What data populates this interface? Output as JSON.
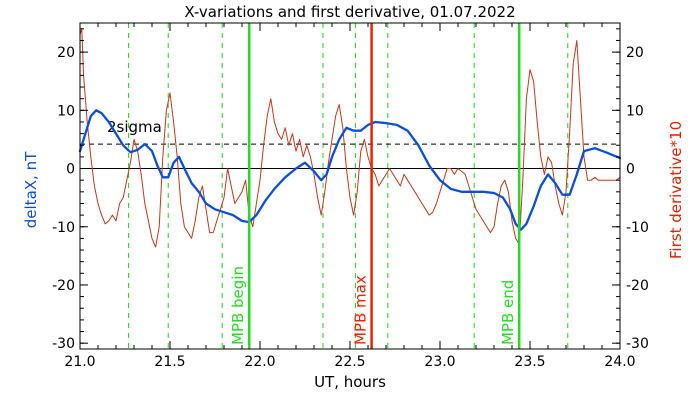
{
  "chart_data": {
    "type": "line",
    "title": "X-variations and first derivative, 01.07.2022",
    "xlabel": "UT, hours",
    "ylabel_left": "deltaX, nT",
    "ylabel_right": "First derivative*10",
    "xlim": [
      21.0,
      24.0
    ],
    "ylim": [
      -31,
      25
    ],
    "x_ticks": [
      21.0,
      21.5,
      22.0,
      22.5,
      23.0,
      23.5,
      24.0
    ],
    "x_tick_labels": [
      "21.0",
      "21.5",
      "22.0",
      "22.5",
      "23.0",
      "23.5",
      "24.0"
    ],
    "y_ticks": [
      20,
      10,
      0,
      -10,
      -20,
      -30
    ],
    "y_tick_labels": [
      "20",
      "10",
      "0",
      "-10",
      "-20",
      "-30"
    ],
    "sigma_level": 4.2,
    "sigma_label": "2sigma",
    "zero_line": 0,
    "colors": {
      "deltaX": "#0a4fd6",
      "derivative": "#c0381c",
      "mpb_begin_end": "#22dd22",
      "mpb_max": "#ee2200",
      "dashed_green": "#22cc22",
      "ylabel_left": "#0a4fd6",
      "ylabel_right": "#dd2200"
    },
    "markers": [
      {
        "x": 21.94,
        "label": "MPB begin",
        "kind": "begin"
      },
      {
        "x": 22.62,
        "label": "MPB max",
        "kind": "max"
      },
      {
        "x": 23.44,
        "label": "MPB end",
        "kind": "end"
      }
    ],
    "dashed_lines_x": [
      21.27,
      21.49,
      21.79,
      22.35,
      22.53,
      22.71,
      23.19,
      23.71
    ],
    "series": [
      {
        "key": "deltaX",
        "x": [
          21.0,
          21.03,
          21.06,
          21.09,
          21.12,
          21.16,
          21.2,
          21.24,
          21.28,
          21.32,
          21.36,
          21.4,
          21.43,
          21.46,
          21.49,
          21.52,
          21.55,
          21.58,
          21.62,
          21.66,
          21.7,
          21.75,
          21.8,
          21.85,
          21.9,
          21.94,
          21.98,
          22.03,
          22.08,
          22.14,
          22.2,
          22.25,
          22.3,
          22.34,
          22.37,
          22.4,
          22.44,
          22.48,
          22.52,
          22.56,
          22.6,
          22.64,
          22.7,
          22.76,
          22.82,
          22.88,
          22.94,
          23.0,
          23.06,
          23.12,
          23.18,
          23.24,
          23.3,
          23.35,
          23.39,
          23.42,
          23.45,
          23.48,
          23.52,
          23.56,
          23.6,
          23.64,
          23.68,
          23.72,
          23.76,
          23.8,
          23.86,
          23.92,
          24.0
        ],
        "values": [
          3.0,
          6.0,
          9.0,
          10.0,
          9.5,
          8.0,
          6.0,
          4.0,
          2.8,
          3.2,
          4.2,
          3.0,
          0.5,
          -1.5,
          -1.5,
          1.0,
          2.0,
          0.0,
          -2.5,
          -4.0,
          -6.0,
          -7.0,
          -7.5,
          -8.0,
          -9.0,
          -9.2,
          -8.0,
          -5.5,
          -3.5,
          -1.5,
          0.0,
          1.0,
          -0.5,
          -2.0,
          -1.0,
          2.0,
          5.0,
          7.0,
          6.5,
          6.5,
          7.5,
          8.0,
          7.8,
          7.5,
          6.5,
          4.0,
          0.5,
          -2.0,
          -3.5,
          -4.0,
          -4.0,
          -4.0,
          -4.2,
          -5.0,
          -7.0,
          -9.5,
          -10.5,
          -9.5,
          -6.5,
          -3.0,
          -1.0,
          -2.5,
          -4.5,
          -4.5,
          -1.0,
          3.0,
          3.5,
          2.8,
          1.8
        ]
      },
      {
        "key": "derivative",
        "x": [
          21.0,
          21.01,
          21.02,
          21.04,
          21.06,
          21.08,
          21.1,
          21.12,
          21.14,
          21.16,
          21.18,
          21.2,
          21.22,
          21.24,
          21.26,
          21.28,
          21.3,
          21.32,
          21.34,
          21.36,
          21.38,
          21.4,
          21.42,
          21.44,
          21.46,
          21.48,
          21.5,
          21.52,
          21.54,
          21.56,
          21.58,
          21.6,
          21.62,
          21.64,
          21.66,
          21.68,
          21.7,
          21.72,
          21.74,
          21.76,
          21.78,
          21.8,
          21.82,
          21.84,
          21.86,
          21.88,
          21.9,
          21.92,
          21.94,
          21.96,
          21.98,
          22.0,
          22.02,
          22.04,
          22.06,
          22.08,
          22.1,
          22.12,
          22.14,
          22.16,
          22.18,
          22.2,
          22.22,
          22.24,
          22.26,
          22.28,
          22.3,
          22.32,
          22.34,
          22.36,
          22.38,
          22.4,
          22.42,
          22.44,
          22.46,
          22.48,
          22.5,
          22.52,
          22.54,
          22.56,
          22.58,
          22.6,
          22.62,
          22.64,
          22.66,
          22.68,
          22.7,
          22.72,
          22.74,
          22.76,
          22.78,
          22.8,
          22.82,
          22.84,
          22.86,
          22.88,
          22.9,
          22.92,
          22.94,
          22.96,
          22.98,
          23.0,
          23.02,
          23.04,
          23.06,
          23.08,
          23.1,
          23.12,
          23.14,
          23.16,
          23.18,
          23.2,
          23.22,
          23.24,
          23.26,
          23.28,
          23.3,
          23.32,
          23.34,
          23.36,
          23.38,
          23.4,
          23.42,
          23.44,
          23.46,
          23.48,
          23.5,
          23.52,
          23.54,
          23.56,
          23.58,
          23.6,
          23.62,
          23.64,
          23.66,
          23.68,
          23.7,
          23.72,
          23.74,
          23.76,
          23.78,
          23.8,
          23.82,
          23.84,
          23.86,
          23.88,
          23.9,
          23.92,
          23.94,
          23.96,
          23.98,
          24.0
        ],
        "values": [
          23.0,
          24.0,
          16.0,
          8.0,
          2.0,
          -3.0,
          -6.0,
          -8.0,
          -9.5,
          -9.0,
          -8.0,
          -9.0,
          -6.0,
          -5.0,
          -2.0,
          1.0,
          5.0,
          3.0,
          -1.0,
          -6.0,
          -9.0,
          -12.0,
          -13.5,
          -10.0,
          2.0,
          10.0,
          13.0,
          8.0,
          2.0,
          -6.0,
          -10.0,
          -11.0,
          -12.0,
          -9.0,
          -5.0,
          -3.0,
          -7.0,
          -11.0,
          -11.0,
          -9.0,
          -7.0,
          -5.0,
          0.0,
          -3.0,
          -6.0,
          -5.0,
          -4.0,
          -2.0,
          -8.0,
          -10.0,
          -6.0,
          -2.0,
          4.0,
          9.0,
          12.0,
          8.0,
          6.0,
          5.0,
          7.0,
          4.0,
          6.0,
          3.0,
          5.0,
          2.0,
          4.0,
          2.0,
          -1.0,
          -5.0,
          -8.0,
          -4.0,
          1.0,
          5.0,
          9.0,
          11.0,
          7.0,
          0.0,
          -5.0,
          -8.0,
          -4.0,
          3.0,
          5.0,
          2.0,
          0.0,
          -1.0,
          -3.0,
          -2.0,
          -1.0,
          0.0,
          -1.0,
          -2.0,
          -3.0,
          -1.0,
          -2.0,
          -3.0,
          -4.0,
          -5.0,
          -6.0,
          -7.0,
          -8.0,
          -7.5,
          -6.0,
          -4.0,
          -2.0,
          0.0,
          0.0,
          -1.0,
          0.0,
          -0.5,
          -1.0,
          -3.0,
          -5.0,
          -7.0,
          -8.0,
          -9.0,
          -10.0,
          -11.0,
          -10.0,
          -6.0,
          -3.0,
          -2.0,
          -4.0,
          -9.0,
          -12.0,
          -13.0,
          -2.0,
          12.0,
          17.0,
          15.0,
          8.0,
          2.0,
          -1.0,
          2.0,
          1.0,
          -3.0,
          -6.0,
          -8.0,
          -4.0,
          6.0,
          18.0,
          22.0,
          12.0,
          2.0,
          -2.0,
          -2.0,
          -1.5,
          -2.0,
          -2.0,
          -2.0,
          -2.0,
          -2.0,
          -2.0,
          -1.5
        ]
      }
    ]
  }
}
